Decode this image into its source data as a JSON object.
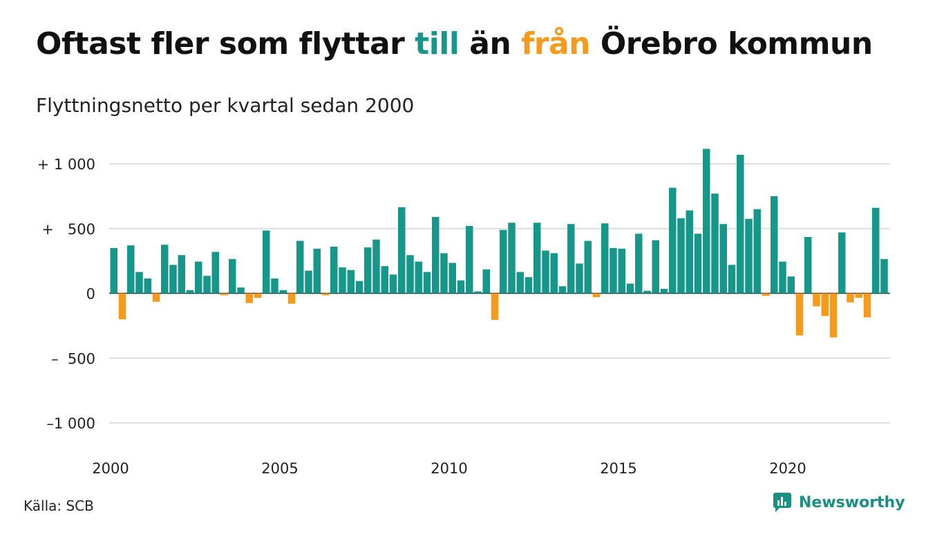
{
  "header": {
    "title_parts": [
      "Oftast fler som flyttar",
      "till",
      "än",
      "från",
      "Örebro kommun"
    ],
    "subtitle": "Flyttningsnetto per kvartal sedan 2000"
  },
  "footer": {
    "source": "Källa: SCB",
    "brand": "Newsworthy",
    "brand_icon": "newsworthy-chart-logo-icon"
  },
  "colors": {
    "positive": "#17978a",
    "negative": "#f49b1e",
    "grid": "#dedede",
    "zero": "#222222"
  },
  "chart_data": {
    "type": "bar",
    "title": "Oftast fler som flyttar till än från Örebro kommun",
    "subtitle": "Flyttningsnetto per kvartal sedan 2000",
    "x_start": "2000 Q1",
    "ylim": [
      -1150,
      1150
    ],
    "yticks": [
      1000,
      500,
      0,
      -500,
      -1000
    ],
    "ytick_labels": [
      "+ 1 000",
      "+   500",
      "0",
      "–  500",
      "–1 000"
    ],
    "xtick_labels": [
      "2000",
      "2005",
      "2010",
      "2015",
      "2020"
    ],
    "grid": true,
    "values": [
      350,
      -200,
      370,
      165,
      115,
      -65,
      375,
      220,
      295,
      25,
      245,
      135,
      320,
      -15,
      265,
      45,
      -75,
      -35,
      485,
      115,
      25,
      -80,
      405,
      175,
      345,
      -15,
      360,
      200,
      180,
      95,
      355,
      415,
      210,
      145,
      665,
      295,
      245,
      165,
      590,
      310,
      235,
      100,
      520,
      15,
      185,
      -205,
      490,
      545,
      165,
      125,
      545,
      330,
      310,
      55,
      535,
      230,
      405,
      -30,
      540,
      350,
      345,
      75,
      460,
      20,
      410,
      35,
      815,
      580,
      640,
      460,
      1115,
      770,
      535,
      220,
      1070,
      575,
      650,
      -20,
      750,
      245,
      130,
      -325,
      435,
      -100,
      -175,
      -340,
      470,
      -70,
      -35,
      -185,
      660,
      265
    ]
  }
}
